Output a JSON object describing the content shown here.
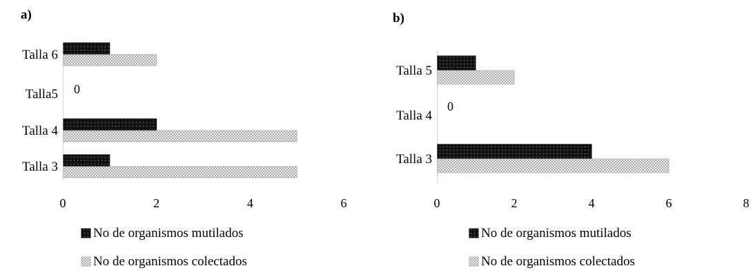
{
  "chart_data": [
    {
      "type": "bar",
      "orientation": "horizontal",
      "panel_label": "a)",
      "categories": [
        "Talla 6",
        "Talla5",
        "Talla 4",
        "Talla 3"
      ],
      "series": [
        {
          "name": "No de organismos mutilados",
          "values": [
            1,
            0,
            2,
            1
          ]
        },
        {
          "name": "No de organismos colectados",
          "values": [
            2,
            0,
            5,
            5
          ]
        }
      ],
      "zero_label": "0",
      "xlim": [
        0,
        6
      ],
      "xticks": [
        "0",
        "2",
        "4",
        "6"
      ],
      "legend_position": "bottom",
      "grid": false
    },
    {
      "type": "bar",
      "orientation": "horizontal",
      "panel_label": "b)",
      "categories": [
        "Talla 5",
        "Talla 4",
        "Talla 3"
      ],
      "series": [
        {
          "name": "No de organismos mutilados",
          "values": [
            1,
            0,
            4
          ]
        },
        {
          "name": "No de organismos colectados",
          "values": [
            2,
            0,
            6
          ]
        }
      ],
      "zero_label": "0",
      "xlim": [
        0,
        8
      ],
      "xticks": [
        "0",
        "2",
        "4",
        "6",
        "8"
      ],
      "legend_position": "bottom",
      "grid": false
    }
  ],
  "colors": {
    "mutilados": "#111111",
    "colectados": "#8c8c8c",
    "axis": "#d0d0d0"
  }
}
